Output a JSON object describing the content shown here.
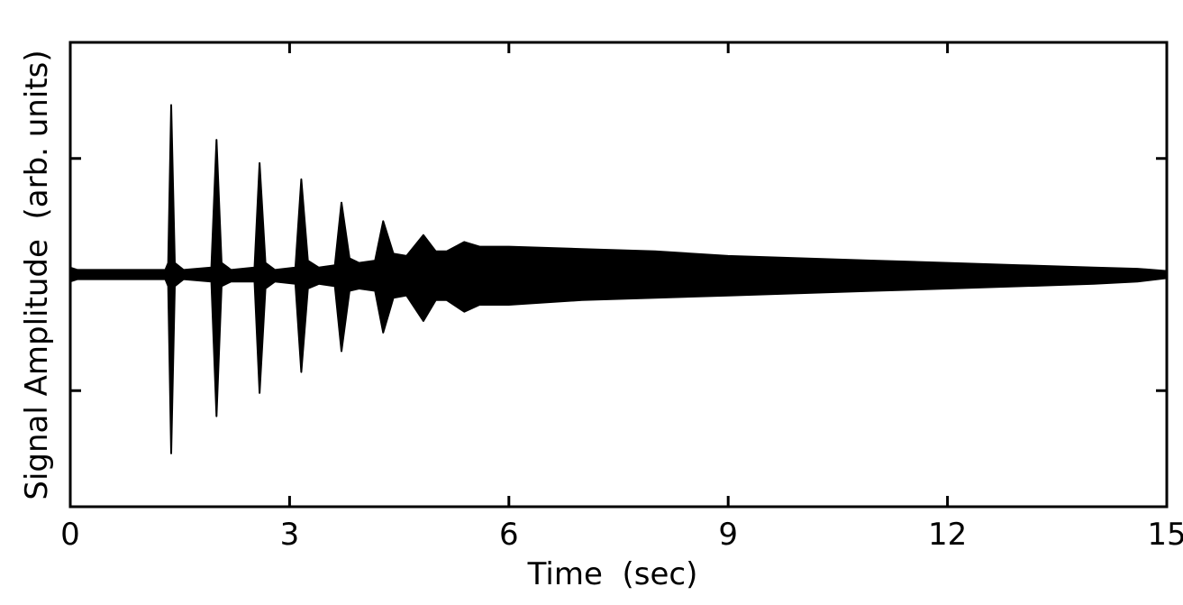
{
  "chart_data": {
    "type": "envelope",
    "xlabel": "Time  (sec)",
    "ylabel": "Signal Amplitude  (arb. units)",
    "x": [
      0,
      0.1,
      1.3,
      1.34,
      1.38,
      1.43,
      1.55,
      1.93,
      2.0,
      2.07,
      2.2,
      2.52,
      2.59,
      2.67,
      2.8,
      3.08,
      3.16,
      3.25,
      3.4,
      3.62,
      3.71,
      3.82,
      3.95,
      4.17,
      4.28,
      4.42,
      4.6,
      4.83,
      5.0,
      5.15,
      5.39,
      5.6,
      6,
      7,
      8,
      9,
      10,
      11,
      12,
      13,
      14,
      14.6,
      15
    ],
    "upper": [
      0.03,
      0.02,
      0.02,
      0.05,
      0.73,
      0.05,
      0.02,
      0.03,
      0.58,
      0.05,
      0.02,
      0.03,
      0.48,
      0.05,
      0.02,
      0.03,
      0.41,
      0.06,
      0.03,
      0.04,
      0.31,
      0.07,
      0.05,
      0.06,
      0.23,
      0.09,
      0.08,
      0.17,
      0.1,
      0.1,
      0.14,
      0.12,
      0.12,
      0.11,
      0.1,
      0.08,
      0.07,
      0.06,
      0.05,
      0.04,
      0.03,
      0.025,
      0.015
    ],
    "lower": [
      -0.03,
      -0.02,
      -0.02,
      -0.05,
      -0.77,
      -0.05,
      -0.02,
      -0.03,
      -0.61,
      -0.05,
      -0.03,
      -0.03,
      -0.51,
      -0.06,
      -0.03,
      -0.04,
      -0.42,
      -0.06,
      -0.04,
      -0.05,
      -0.33,
      -0.07,
      -0.06,
      -0.07,
      -0.25,
      -0.1,
      -0.09,
      -0.2,
      -0.11,
      -0.11,
      -0.16,
      -0.13,
      -0.13,
      -0.11,
      -0.1,
      -0.09,
      -0.08,
      -0.07,
      -0.06,
      -0.05,
      -0.04,
      -0.03,
      -0.015
    ],
    "color": "#000000",
    "xlim": [
      0,
      15
    ],
    "xticks": [
      0,
      3,
      6,
      9,
      12,
      15
    ],
    "ylim": [
      -1,
      1
    ],
    "yticks": [
      -0.5,
      0.5
    ],
    "ytick_labels": false,
    "mirror_ticks": true
  }
}
